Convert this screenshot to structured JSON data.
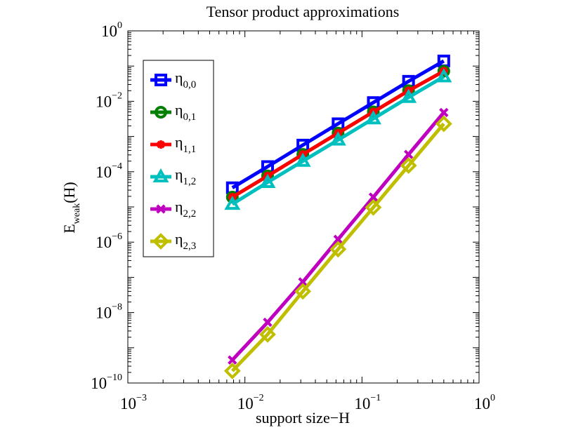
{
  "chart_data": {
    "type": "line",
    "scale": "log-log",
    "title": "Tensor product approximations",
    "xlabel": "support size−H",
    "ylabel": {
      "base": "E",
      "subscript": "weak",
      "suffix": "(H)"
    },
    "xlim": [
      0.001,
      1
    ],
    "ylim": [
      1e-10,
      1
    ],
    "grid": false,
    "legend_position": "top-left",
    "x_ticks": [
      {
        "base": "10",
        "exp": "−3",
        "value": 0.001
      },
      {
        "base": "10",
        "exp": "−2",
        "value": 0.01
      },
      {
        "base": "10",
        "exp": "−1",
        "value": 0.1
      },
      {
        "base": "10",
        "exp": "0",
        "value": 1
      }
    ],
    "y_ticks": [
      {
        "base": "10",
        "exp": "−10",
        "value": 1e-10
      },
      {
        "base": "10",
        "exp": "−8",
        "value": 1e-08
      },
      {
        "base": "10",
        "exp": "−6",
        "value": 1e-06
      },
      {
        "base": "10",
        "exp": "−4",
        "value": 0.0001
      },
      {
        "base": "10",
        "exp": "−2",
        "value": 0.01
      },
      {
        "base": "10",
        "exp": "0",
        "value": 1
      }
    ],
    "x": [
      0.0078125,
      0.015625,
      0.03125,
      0.0625,
      0.125,
      0.25,
      0.5
    ],
    "series": [
      {
        "name": "η",
        "sub": "0,0",
        "color": "#0000ff",
        "marker": "square",
        "values": [
          3.5e-05,
          0.00014,
          0.00057,
          0.0023,
          0.0092,
          0.037,
          0.14
        ]
      },
      {
        "name": "η",
        "sub": "0,1",
        "color": "#007f00",
        "marker": "circle",
        "values": [
          1.9e-05,
          7.6e-05,
          0.00031,
          0.00125,
          0.005,
          0.02,
          0.072
        ]
      },
      {
        "name": "η",
        "sub": "1,1",
        "color": "#ff0000",
        "marker": "asterisk",
        "values": [
          1.9e-05,
          7.6e-05,
          0.00031,
          0.00125,
          0.005,
          0.02,
          0.072
        ]
      },
      {
        "name": "η",
        "sub": "1,2",
        "color": "#00bfbf",
        "marker": "triangle",
        "values": [
          1.2e-05,
          5e-05,
          0.0002,
          0.0008,
          0.0032,
          0.013,
          0.05
        ]
      },
      {
        "name": "η",
        "sub": "2,2",
        "color": "#bf00bf",
        "marker": "x",
        "values": [
          4.5e-10,
          5.3e-09,
          7.4e-08,
          1.2e-06,
          1.9e-05,
          0.00031,
          0.0048
        ]
      },
      {
        "name": "η",
        "sub": "2,3",
        "color": "#bfbf00",
        "marker": "diamond",
        "values": [
          2.2e-10,
          2.4e-09,
          4e-08,
          6.3e-07,
          9.7e-06,
          0.00015,
          0.0023
        ]
      }
    ]
  }
}
